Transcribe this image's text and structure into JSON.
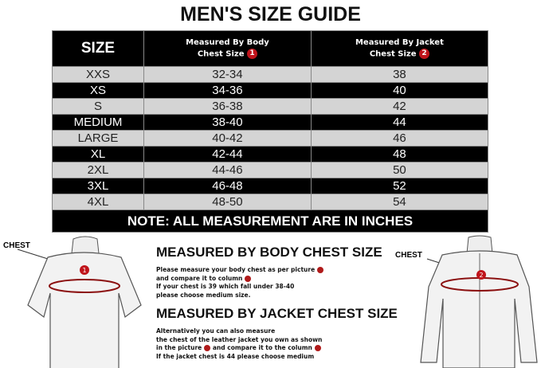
{
  "title": "MEN'S SIZE GUIDE",
  "table": {
    "headers": {
      "size": "SIZE",
      "body_line1": "Measured By Body",
      "body_line2": "Chest Size",
      "body_badge": "1",
      "jacket_line1": "Measured By Jacket",
      "jacket_line2": "Chest Size",
      "jacket_badge": "2"
    },
    "rows": [
      {
        "size": "XXS",
        "body": "32-34",
        "jacket": "38"
      },
      {
        "size": "XS",
        "body": "34-36",
        "jacket": "40"
      },
      {
        "size": "S",
        "body": "36-38",
        "jacket": "42"
      },
      {
        "size": "MEDIUM",
        "body": "38-40",
        "jacket": "44"
      },
      {
        "size": "LARGE",
        "body": "40-42",
        "jacket": "46"
      },
      {
        "size": "XL",
        "body": "42-44",
        "jacket": "48"
      },
      {
        "size": "2XL",
        "body": "44-46",
        "jacket": "50"
      },
      {
        "size": "3XL",
        "body": "46-48",
        "jacket": "52"
      },
      {
        "size": "4XL",
        "body": "48-50",
        "jacket": "54"
      }
    ],
    "note": "NOTE: ALL MEASUREMENT ARE IN INCHES"
  },
  "body_section": {
    "heading": "MEASURED BY BODY CHEST SIZE",
    "lines": [
      "Please measure your body chest as per picture",
      "and compare it to column",
      "If your chest is 39 which fall under 38-40",
      "please choose medium size."
    ]
  },
  "jacket_section": {
    "heading": "MEASURED BY JACKET CHEST SIZE",
    "lines": [
      "Alternatively you can also measure",
      "the chest of the leather jacket you own as shown",
      "in the picture",
      "and compare it to the column",
      "If the jacket chest is 44 please choose medium"
    ]
  },
  "figures": {
    "left_label": "CHEST",
    "left_badge": "1",
    "right_label": "CHEST",
    "right_badge": "2"
  },
  "colors": {
    "accent": "#c0141b",
    "header_bg": "#000000",
    "light_row": "#d4d4d4"
  }
}
